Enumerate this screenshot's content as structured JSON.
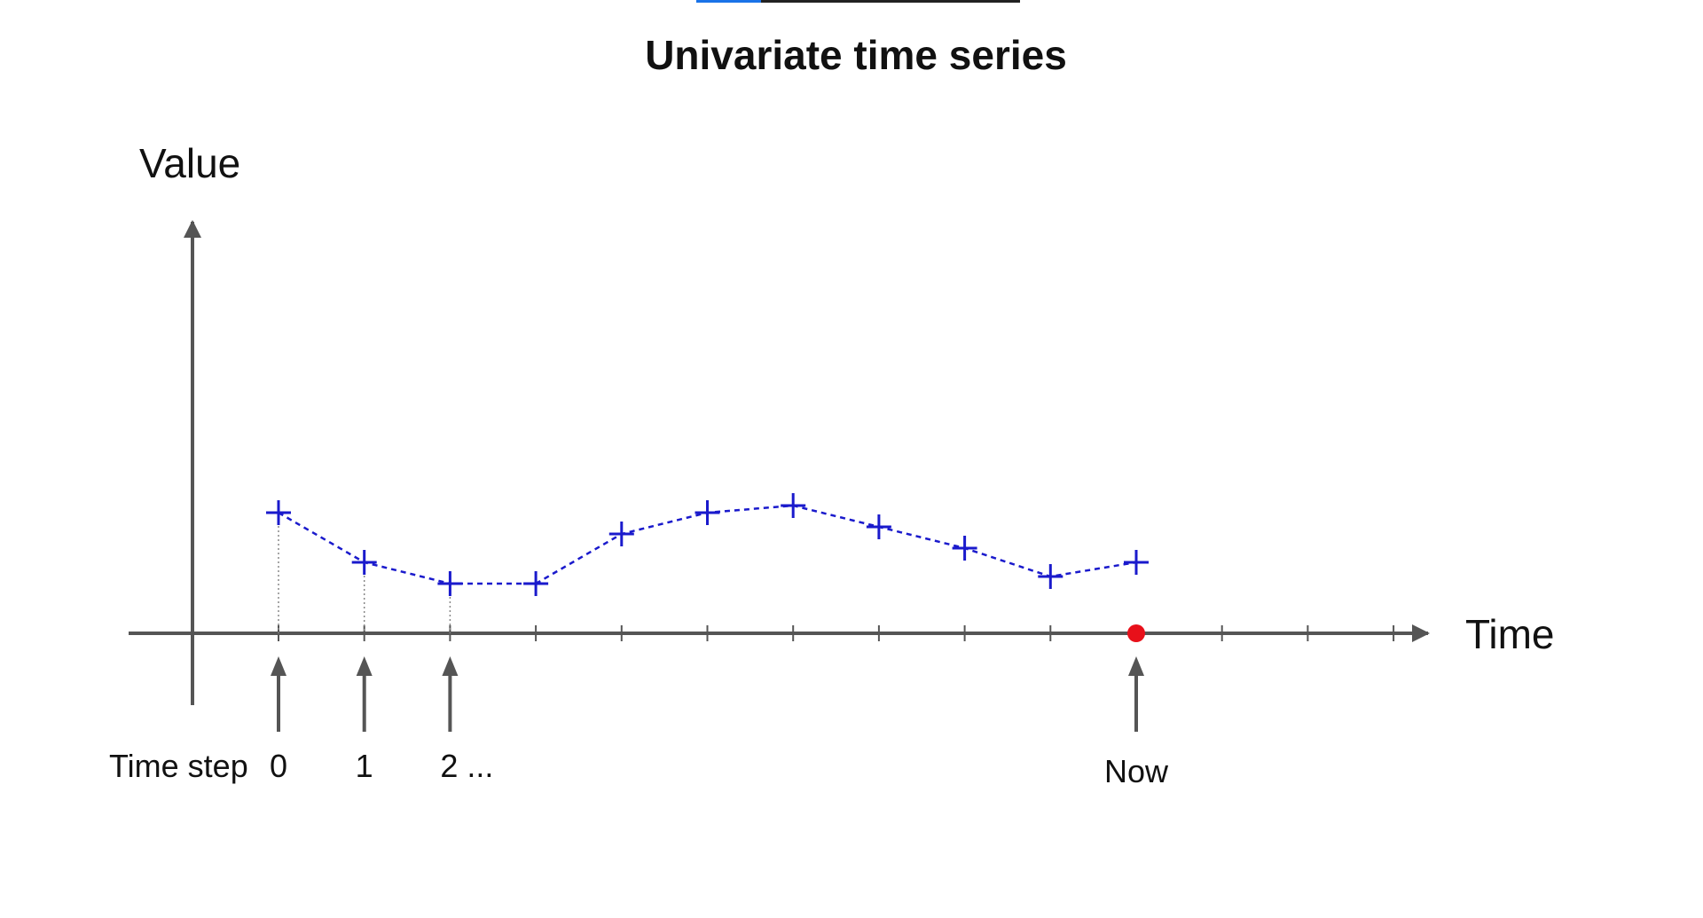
{
  "progress": {
    "fraction": 0.2
  },
  "diagram": {
    "title": "Univariate time series",
    "y_axis_label": "Value",
    "x_axis_label": "Time",
    "time_step_label": "Time step",
    "step_labels": [
      "0",
      "1",
      "2 ..."
    ],
    "now_label": "Now"
  },
  "chart_data": {
    "type": "line",
    "title": "Univariate time series",
    "xlabel": "Time",
    "ylabel": "Value",
    "series": [
      {
        "values": [
          1.7,
          1.0,
          0.7,
          0.7,
          1.4,
          1.7,
          1.8,
          1.5,
          1.2,
          0.8,
          1.0
        ]
      }
    ],
    "total_ticks": 14,
    "now_index": 10,
    "colors": {
      "axis": "#555555",
      "series": "#1a1acc",
      "now_marker": "#e8101a",
      "dotted": "#888888"
    }
  }
}
